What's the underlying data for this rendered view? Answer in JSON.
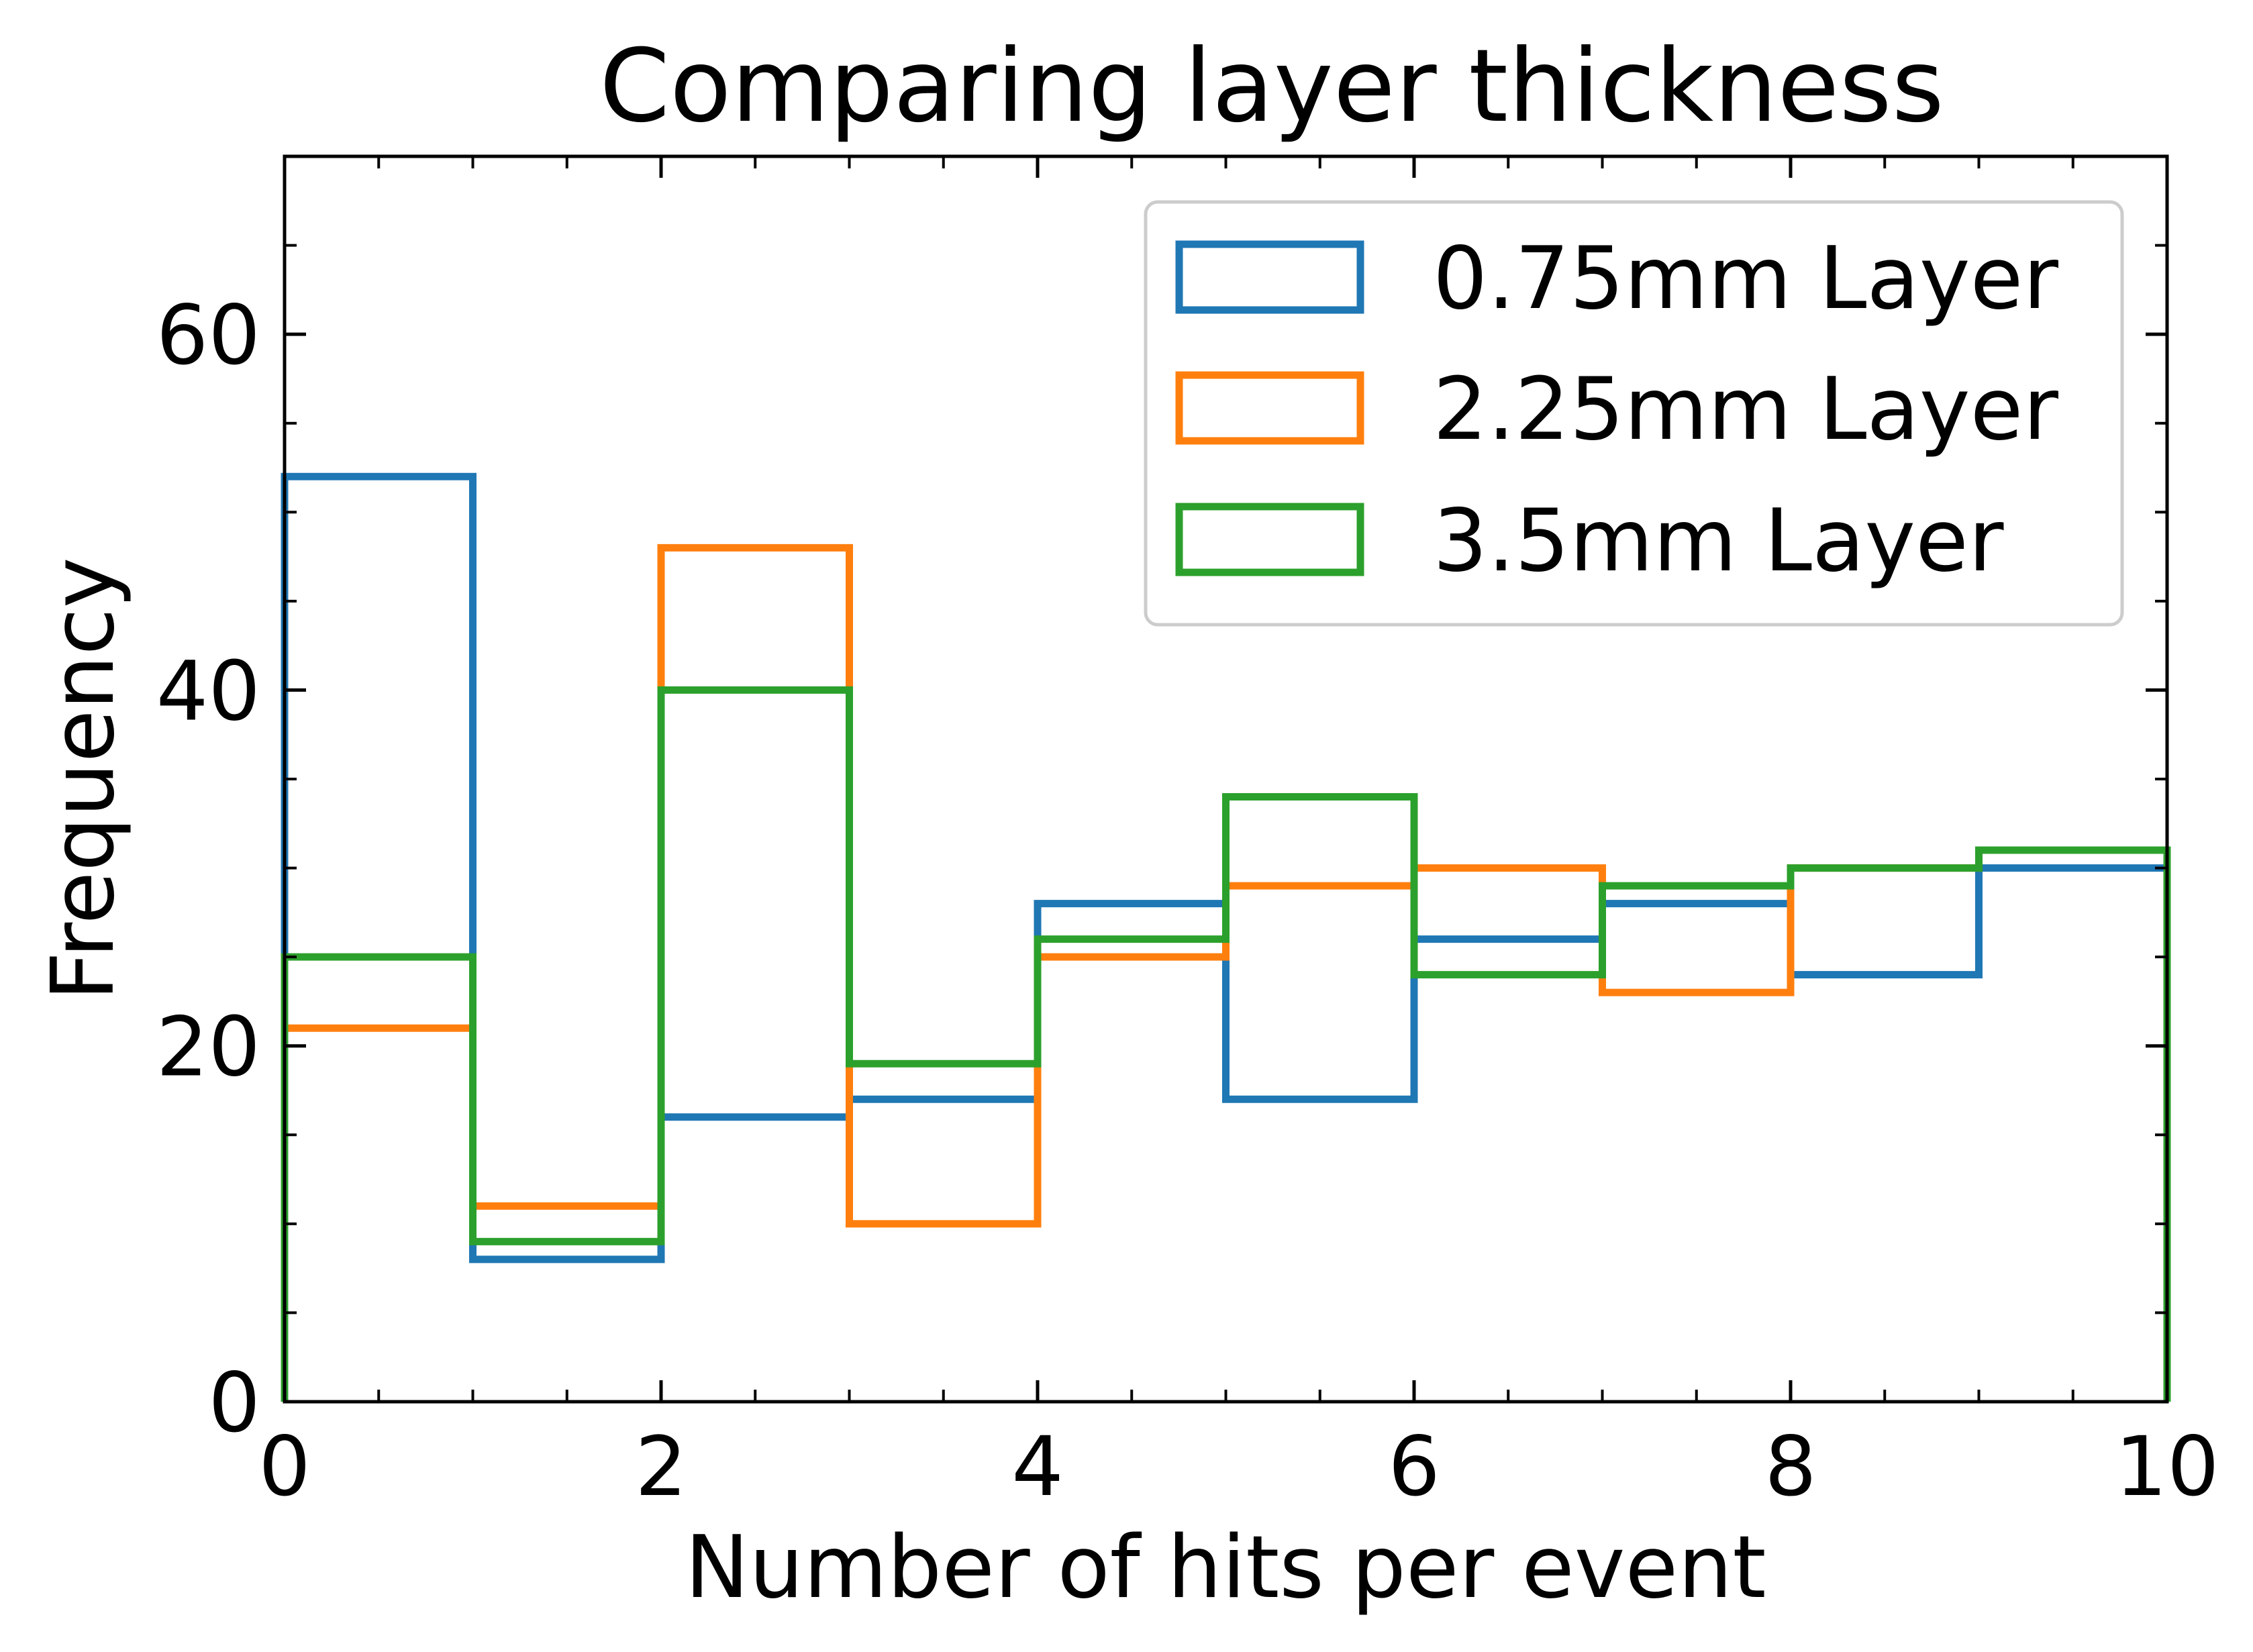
{
  "chart_data": {
    "type": "histogram-step",
    "title": "Comparing layer thickness",
    "xlabel": "Number of hits per event",
    "ylabel": "Frequency",
    "xlim": [
      0,
      10
    ],
    "ylim": [
      0,
      70
    ],
    "bin_edges": [
      0,
      1,
      2,
      3,
      4,
      5,
      6,
      7,
      8,
      9,
      10
    ],
    "x_ticks": [
      0,
      2,
      4,
      6,
      8,
      10
    ],
    "x_tick_labels": [
      "0",
      "2",
      "4",
      "6",
      "8",
      "10"
    ],
    "y_ticks": [
      0,
      20,
      40,
      60
    ],
    "y_tick_labels": [
      "0",
      "20",
      "40",
      "60"
    ],
    "legend_position": "upper-right",
    "series": [
      {
        "name": "0.75mm Layer",
        "color": "#1f77b4",
        "values": [
          52,
          8,
          16,
          17,
          28,
          17,
          26,
          28,
          24,
          30
        ]
      },
      {
        "name": "2.25mm Layer",
        "color": "#ff7f0e",
        "values": [
          21,
          11,
          48,
          10,
          25,
          29,
          30,
          23,
          30,
          31
        ]
      },
      {
        "name": "3.5mm Layer",
        "color": "#2ca02c",
        "values": [
          25,
          9,
          40,
          19,
          26,
          34,
          24,
          29,
          30,
          31
        ]
      }
    ]
  }
}
